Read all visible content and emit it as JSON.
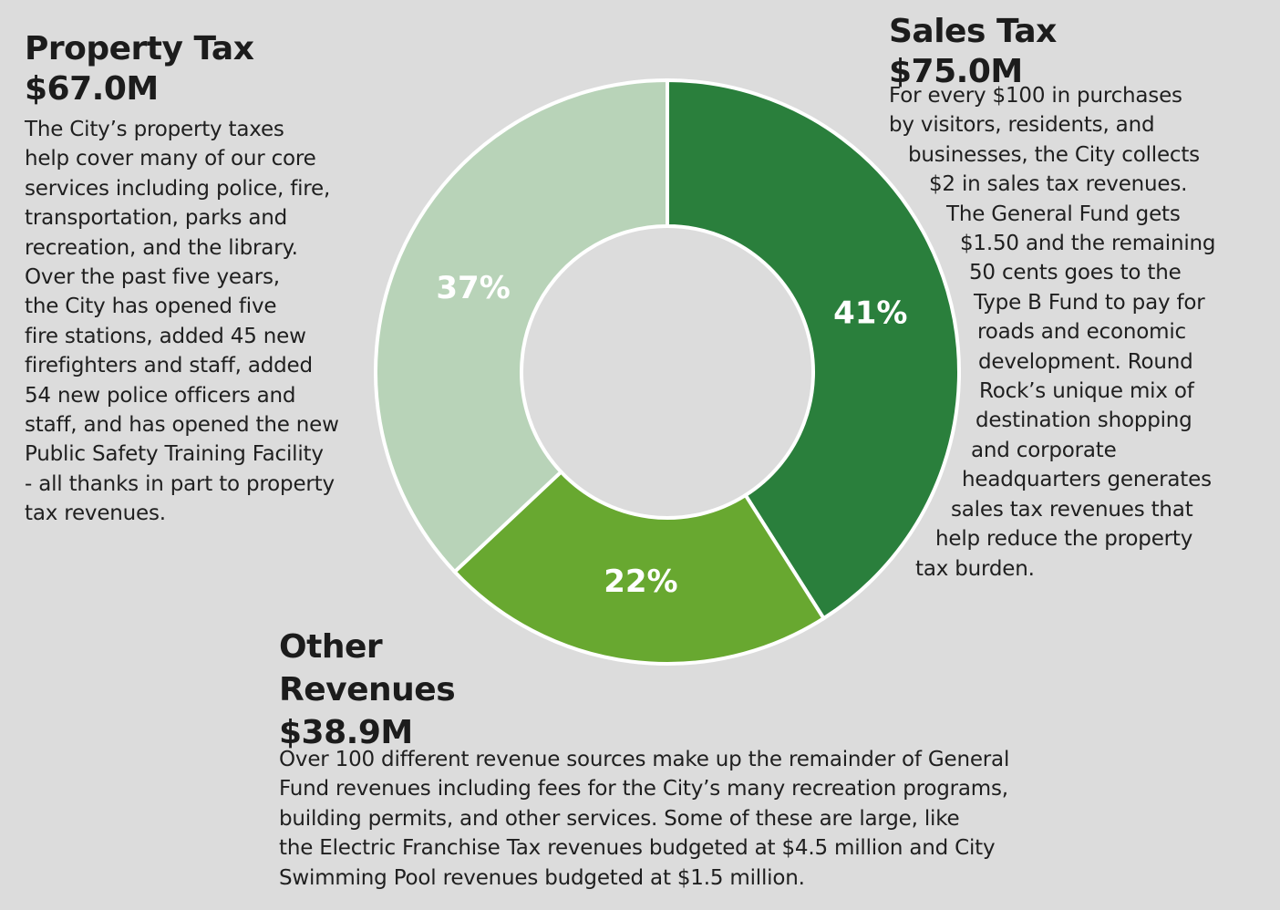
{
  "chart_data": {
    "type": "pie",
    "donut": true,
    "slices": [
      {
        "label": "Sales Tax",
        "amount": "$75.0M",
        "value": 41,
        "value_label": "41%",
        "color": "#2a7f3c"
      },
      {
        "label": "Other Revenues",
        "amount": "$38.9M",
        "value": 22,
        "value_label": "22%",
        "color": "#68a830"
      },
      {
        "label": "Property Tax",
        "amount": "$67.0M",
        "value": 37,
        "value_label": "37%",
        "color": "#b8d3b8"
      }
    ]
  },
  "property_tax": {
    "title": "Property Tax",
    "amount": "$67.0M",
    "lines": [
      "The City’s property taxes",
      "help cover many of our core",
      "services including police, fire,",
      "transportation, parks and",
      "recreation, and the library.",
      "Over the past five years,",
      "the City has opened five",
      "fire stations, added 45 new",
      "firefighters and staff, added",
      "54 new police officers and",
      "staff, and has opened the new",
      "Public Safety Training Facility",
      "- all thanks in part to property",
      "tax revenues."
    ]
  },
  "sales_tax": {
    "title": "Sales Tax",
    "amount": "$75.0M",
    "lines": [
      "For every $100 in purchases",
      "by visitors, residents, and",
      "businesses, the City collects",
      "$2 in sales tax revenues.",
      "The General Fund gets",
      "$1.50 and the remaining",
      "50 cents goes to the",
      "Type B Fund to pay for",
      "roads and economic",
      "development.  Round",
      "Rock’s unique mix of",
      "destination shopping",
      "and corporate",
      "headquarters generates",
      "sales tax revenues that",
      "help reduce the property",
      "tax burden."
    ]
  },
  "other_revenues": {
    "title_line1": "Other",
    "title_line2": "Revenues",
    "amount": "$38.9M",
    "lines": [
      "Over 100 different revenue sources make up the remainder of General",
      "Fund revenues including fees for the City’s many recreation programs,",
      "building permits, and other services. Some of these are large, like",
      "the Electric Franchise Tax revenues budgeted at $4.5 million and City",
      "Swimming Pool revenues budgeted at $1.5 million."
    ]
  }
}
